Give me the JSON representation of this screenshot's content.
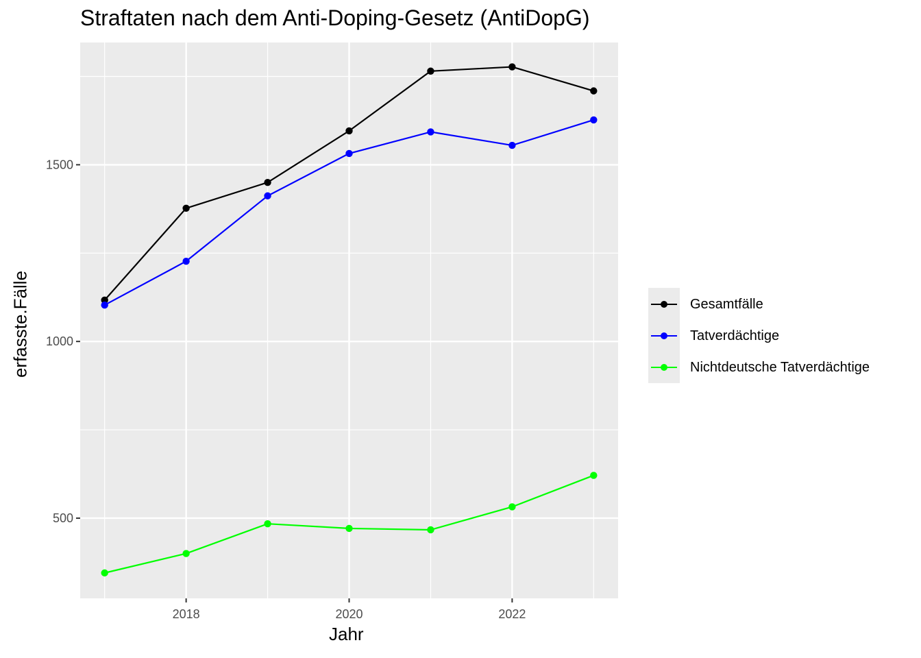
{
  "chart_data": {
    "type": "line",
    "title": "Straftaten nach dem Anti-Doping-Gesetz (AntiDopG)",
    "xlabel": "Jahr",
    "ylabel": "erfasste.Fälle",
    "x": [
      2017,
      2018,
      2019,
      2020,
      2021,
      2022,
      2023
    ],
    "xlim": [
      2016.7,
      2023.3
    ],
    "ylim": [
      273,
      1846
    ],
    "x_ticks": [
      2018,
      2020,
      2022
    ],
    "y_ticks": [
      500,
      1000,
      1500
    ],
    "x_tick_labels": [
      "2018",
      "2020",
      "2022"
    ],
    "y_tick_labels": [
      "500",
      "1000",
      "1500"
    ],
    "grid": true,
    "legend_position": "right",
    "series": [
      {
        "name": "Gesamtfälle",
        "color": "#000000",
        "values": [
          1117,
          1377,
          1450,
          1596,
          1765,
          1777,
          1709
        ]
      },
      {
        "name": "Tatverdächtige",
        "color": "#0000ff",
        "values": [
          1103,
          1227,
          1412,
          1532,
          1593,
          1555,
          1627
        ]
      },
      {
        "name": "Nichtdeutsche Tatverdächtige",
        "color": "#00ff00",
        "values": [
          345,
          400,
          484,
          471,
          467,
          532,
          621
        ]
      }
    ]
  }
}
